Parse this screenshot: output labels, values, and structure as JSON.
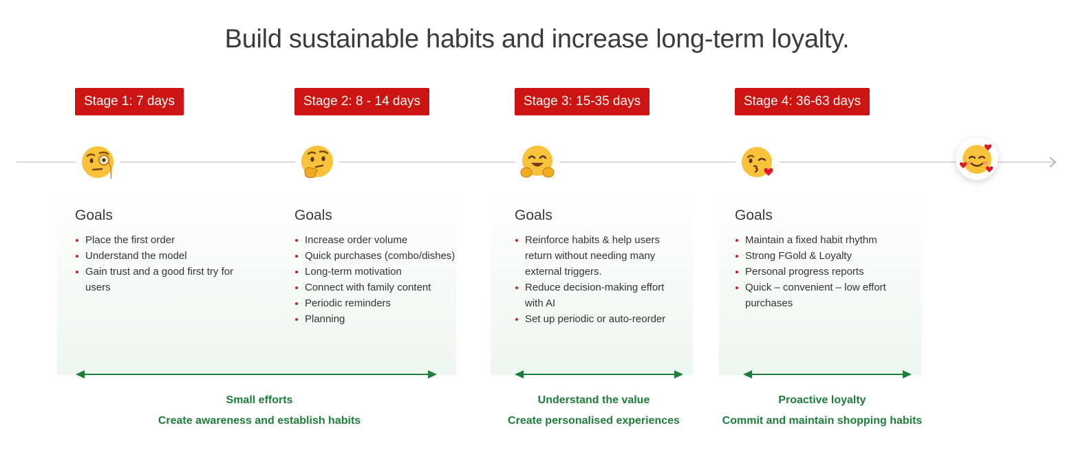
{
  "title": "Build sustainable habits and increase long-term loyalty.",
  "stages": [
    {
      "label": "Stage 1: 7 days",
      "emoji": "face-with-monocle",
      "goals_title": "Goals",
      "goals": [
        "Place the first order",
        "Understand the model",
        "Gain trust and a good first try for users"
      ]
    },
    {
      "label": "Stage 2: 8 - 14 days",
      "emoji": "thinking-face",
      "goals_title": "Goals",
      "goals": [
        "Increase order volume",
        "Quick purchases (combo/dishes)",
        "Long-term motivation",
        "Connect with family content",
        "Periodic reminders",
        "Planning"
      ]
    },
    {
      "label": "Stage 3: 15-35 days",
      "emoji": "hugging-face",
      "goals_title": "Goals",
      "goals": [
        "Reinforce habits & help users return without needing many external triggers.",
        "Reduce decision-making effort with AI",
        "Set up periodic or auto-reorder"
      ]
    },
    {
      "label": "Stage 4: 36-63 days",
      "emoji": "face-blowing-kiss",
      "goals_title": "Goals",
      "goals": [
        "Maintain a fixed habit rhythm",
        "Strong FGold & Loyalty",
        "Personal progress reports",
        "Quick – convenient – low effort purchases"
      ]
    }
  ],
  "final_emoji": "smiling-face-with-hearts",
  "phases": [
    {
      "caption_1": "Small efforts",
      "caption_2": "Create awareness and establish habits"
    },
    {
      "caption_1": "Understand the value",
      "caption_2": "Create personalised experiences"
    },
    {
      "caption_1": "Proactive loyalty",
      "caption_2": "Commit and maintain shopping habits"
    }
  ],
  "colors": {
    "stage_badge": "#cc1512",
    "accent_green": "#1e7d3a",
    "bullet": "#c0261a",
    "timeline": "#d9d9d9"
  }
}
